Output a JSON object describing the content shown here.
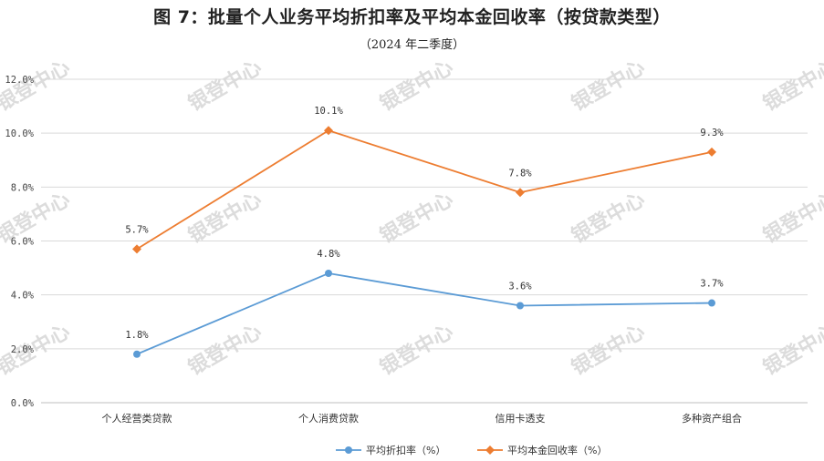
{
  "chart_data": {
    "type": "line",
    "title": "图 7：批量个人业务平均折扣率及平均本金回收率（按贷款类型）",
    "subtitle": "（2024 年二季度）",
    "categories": [
      "个人经营类贷款",
      "个人消费贷款",
      "信用卡透支",
      "多种资产组合"
    ],
    "series": [
      {
        "name": "平均折扣率（%）",
        "color": "#5b9bd5",
        "values": [
          1.8,
          4.8,
          3.6,
          3.7
        ],
        "labels": [
          "1.8%",
          "4.8%",
          "3.6%",
          "3.7%"
        ]
      },
      {
        "name": "平均本金回收率（%）",
        "color": "#ed7d31",
        "values": [
          5.7,
          10.1,
          7.8,
          9.3
        ],
        "labels": [
          "5.7%",
          "10.1%",
          "7.8%",
          "9.3%"
        ]
      }
    ],
    "ylim": [
      0,
      12
    ],
    "yticks": [
      0,
      2,
      4,
      6,
      8,
      10,
      12
    ],
    "ytick_labels": [
      "0.0%",
      "2.0%",
      "4.0%",
      "6.0%",
      "8.0%",
      "10.0%",
      "12.0%"
    ],
    "grid": true,
    "legend": "bottom-center",
    "gridColor": "#d9d9d9"
  },
  "watermark": "银登中心"
}
